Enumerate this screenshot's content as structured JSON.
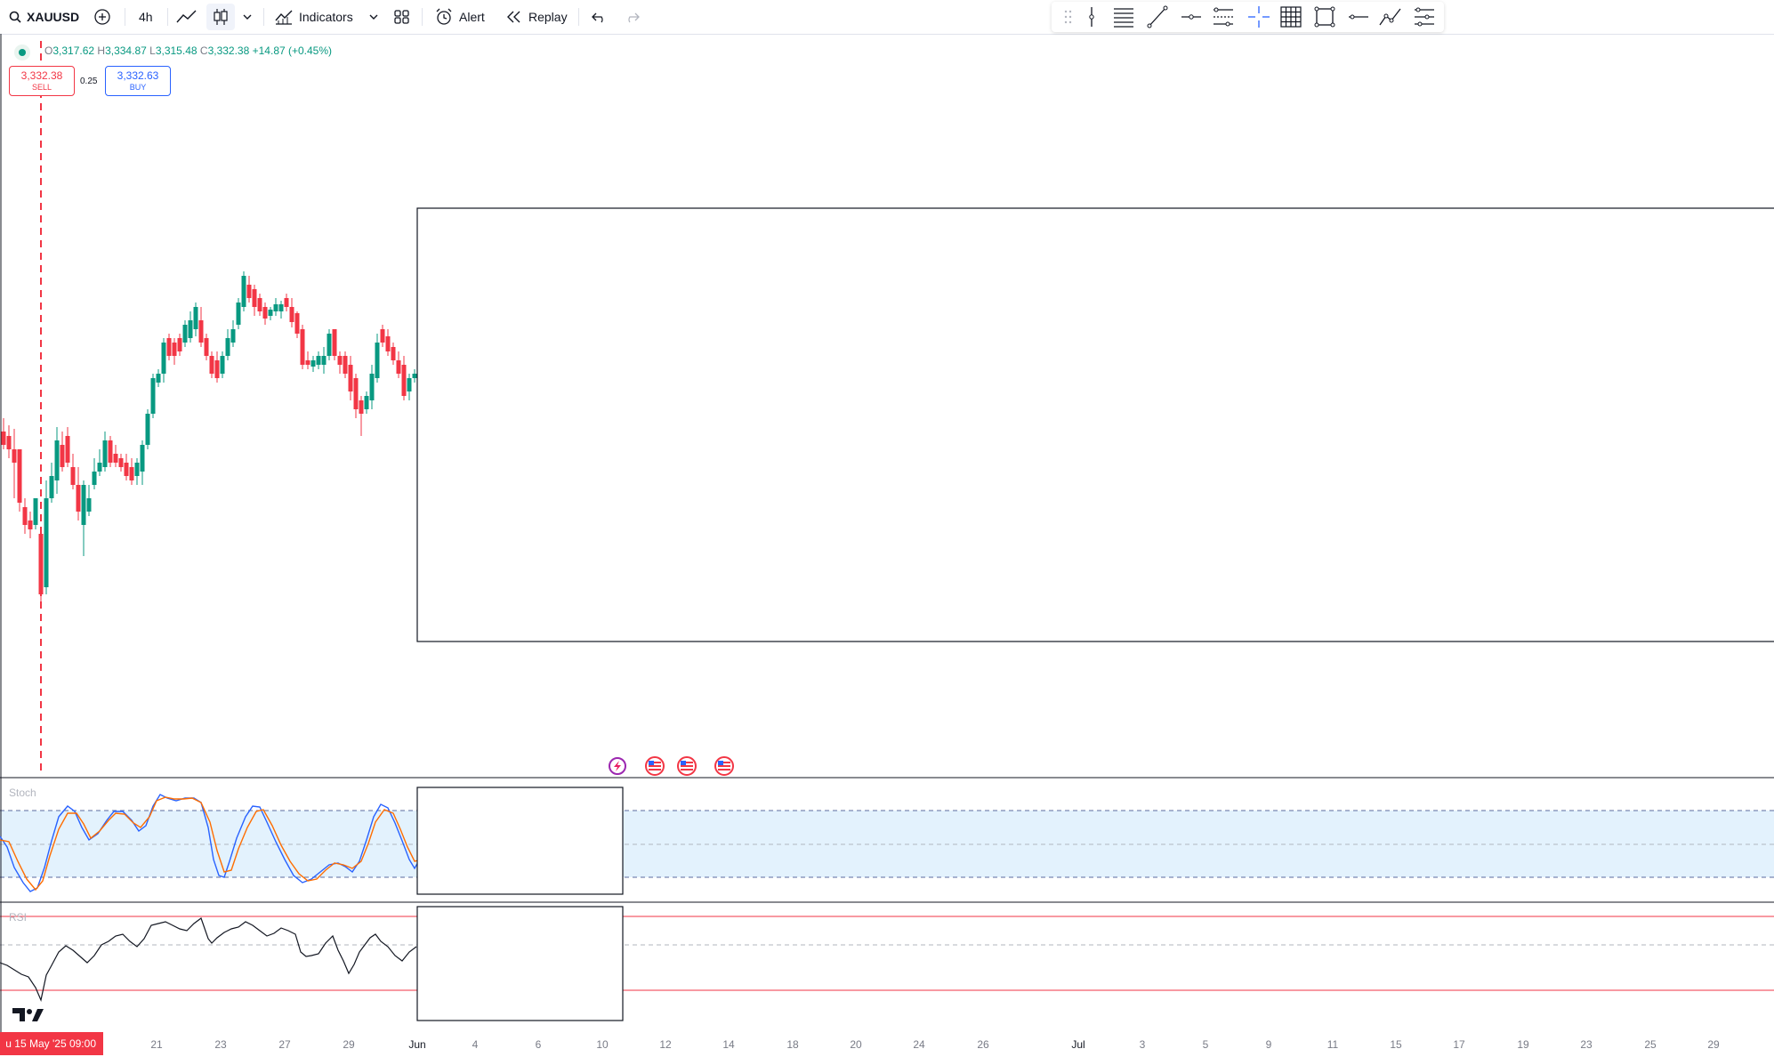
{
  "toolbar": {
    "symbol": "XAUUSD",
    "timeframe": "4h",
    "indicators_label": "Indicators",
    "alert_label": "Alert",
    "replay_label": "Replay"
  },
  "drawing_toolbar": {
    "tools": [
      "drag-handle-icon",
      "vertical-line-icon",
      "horizontal-lines-icon",
      "trend-line-icon",
      "horizontal-ray-icon",
      "parallel-channel-icon",
      "crosshair-icon",
      "grid-icon",
      "rectangle-icon",
      "horizontal-line-icon",
      "path-icon",
      "settings-lines-icon"
    ]
  },
  "legend": {
    "o_label": "O",
    "open": "3,317.62",
    "h_label": "H",
    "high": "3,334.87",
    "l_label": "L",
    "low": "3,315.48",
    "c_label": "C",
    "close": "3,332.38",
    "change": "+14.87 (+0.45%)"
  },
  "trade": {
    "sell_price": "3,332.38",
    "sell_label": "SELL",
    "spread": "0.25",
    "buy_price": "3,332.63",
    "buy_label": "BUY"
  },
  "panes": {
    "stoch_label": "Stoch",
    "rsi_label": "RSI"
  },
  "time_axis": {
    "crosshair_date": "u 15 May '25   09:00",
    "ticks": [
      "21",
      "23",
      "27",
      "29",
      "Jun",
      "4",
      "6",
      "10",
      "12",
      "14",
      "18",
      "20",
      "24",
      "26",
      "Jul",
      "3",
      "5",
      "9",
      "11",
      "15",
      "17",
      "19",
      "23",
      "25",
      "29"
    ]
  },
  "colors": {
    "up": "#089981",
    "down": "#f23645",
    "stoch_k": "#2962ff",
    "stoch_d": "#ff6d00",
    "rsi": "#131722",
    "band": "#e3f2fd"
  },
  "logo": "TradingView",
  "event_icons": [
    "lightning-event-icon",
    "us-flag-event-icon",
    "us-flag-event-icon",
    "us-flag-event-icon"
  ]
}
